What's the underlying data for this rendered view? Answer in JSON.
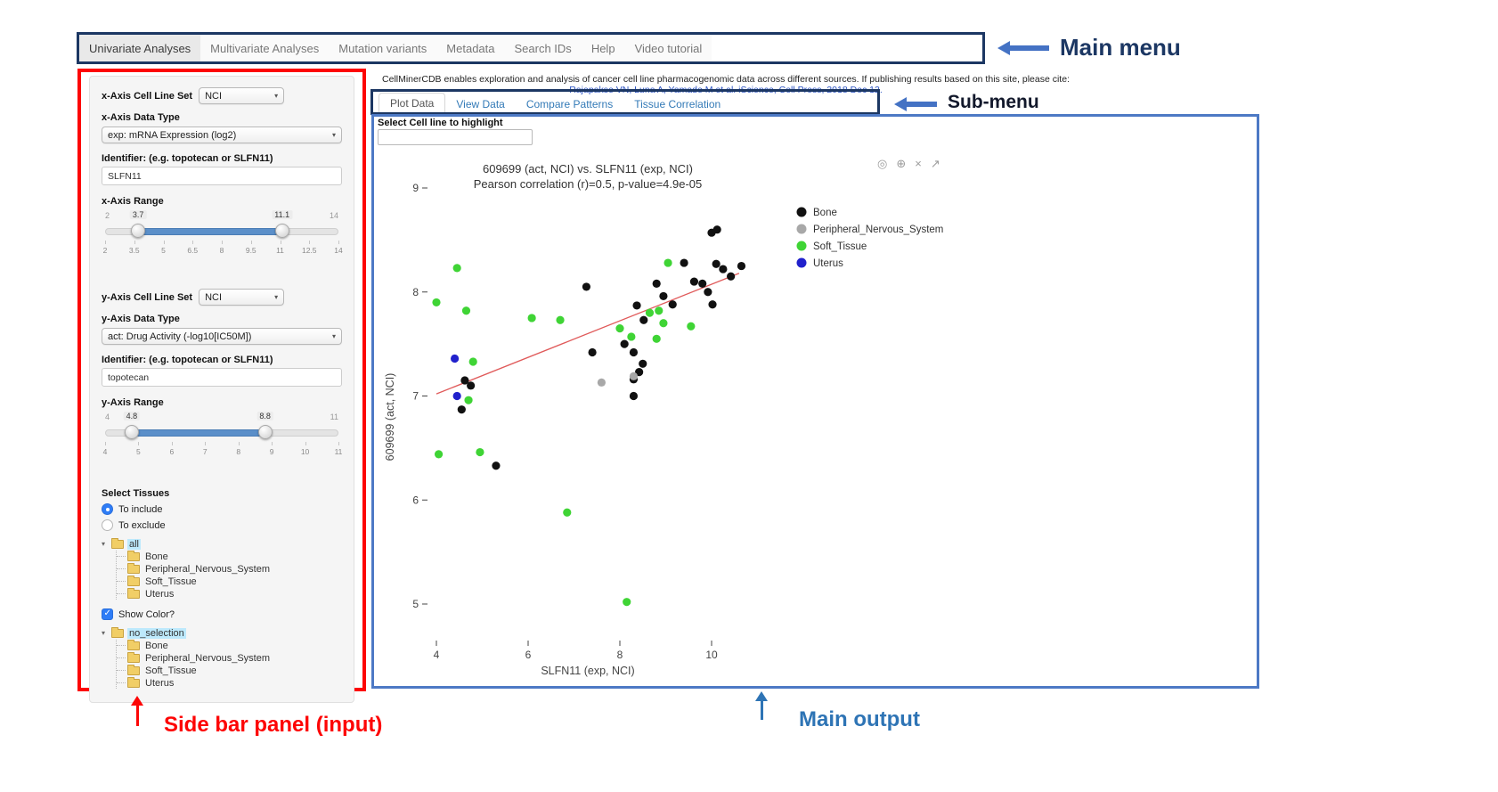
{
  "main_menu": {
    "items": [
      {
        "label": "Univariate Analyses",
        "active": true
      },
      {
        "label": "Multivariate Analyses",
        "active": false
      },
      {
        "label": "Mutation variants",
        "active": false
      },
      {
        "label": "Metadata",
        "active": false
      },
      {
        "label": "Search IDs",
        "active": false
      },
      {
        "label": "Help",
        "active": false
      },
      {
        "label": "Video tutorial",
        "active": false
      }
    ]
  },
  "header": {
    "description": "CellMinerCDB enables exploration and analysis of cancer cell line pharmacogenomic data across different sources. If publishing results based on this site, please cite:",
    "citation": "Rajapakse VN, Luna A, Yamade M et al. iScience, Cell Press, 2018 Dec 12."
  },
  "sub_menu": {
    "tabs": [
      {
        "label": "Plot Data",
        "active": true
      },
      {
        "label": "View Data",
        "active": false
      },
      {
        "label": "Compare Patterns",
        "active": false
      },
      {
        "label": "Tissue Correlation",
        "active": false
      }
    ]
  },
  "sidebar": {
    "x_axis": {
      "cell_line_set_label": "x-Axis Cell Line Set",
      "cell_line_set_value": "NCI",
      "data_type_label": "x-Axis Data Type",
      "data_type_value": "exp: mRNA Expression (log2)",
      "identifier_label": "Identifier: (e.g. topotecan or SLFN11)",
      "identifier_value": "SLFN11",
      "range_label": "x-Axis Range",
      "range": {
        "min": 2,
        "max": 14,
        "from": 3.7,
        "to": 11.1,
        "ticks": [
          "2",
          "3.5",
          "5",
          "6.5",
          "8",
          "9.5",
          "11",
          "12.5",
          "14"
        ]
      }
    },
    "y_axis": {
      "cell_line_set_label": "y-Axis Cell Line Set",
      "cell_line_set_value": "NCI",
      "data_type_label": "y-Axis Data Type",
      "data_type_value": "act: Drug Activity (-log10[IC50M])",
      "identifier_label": "Identifier: (e.g. topotecan or SLFN11)",
      "identifier_value": "topotecan",
      "range_label": "y-Axis Range",
      "range": {
        "min": 4,
        "max": 11,
        "from": 4.8,
        "to": 8.8,
        "ticks": [
          "4",
          "5",
          "6",
          "7",
          "8",
          "9",
          "10",
          "11"
        ]
      }
    },
    "tissues": {
      "label": "Select Tissues",
      "radio_include": "To include",
      "radio_exclude": "To exclude",
      "include_selected": true,
      "tree_root": "all",
      "tree_items": [
        "Bone",
        "Peripheral_Nervous_System",
        "Soft_Tissue",
        "Uterus"
      ],
      "show_color_label": "Show Color?",
      "show_color_checked": true,
      "selection_root": "no_selection",
      "selection_items": [
        "Bone",
        "Peripheral_Nervous_System",
        "Soft_Tissue",
        "Uterus"
      ]
    }
  },
  "main": {
    "highlight_label": "Select Cell line to highlight",
    "highlight_value": "",
    "modebar": [
      {
        "name": "camera-icon",
        "glyph": "◎"
      },
      {
        "name": "zoom-in-icon",
        "glyph": "⊕"
      },
      {
        "name": "close-icon",
        "glyph": "×"
      },
      {
        "name": "autoscale-icon",
        "glyph": "↗"
      }
    ]
  },
  "annotations": {
    "main_menu_label": "Main menu",
    "sub_menu_label": "Sub-menu",
    "sidebar_label": "Side bar panel (input)",
    "main_output_label": "Main output",
    "colors": {
      "navy": "#1c3763",
      "red": "#fd0505",
      "blue": "#2e74b5",
      "arrow_blue": "#4472c4"
    }
  },
  "chart_data": {
    "type": "scatter",
    "title": "609699 (act, NCI) vs. SLFN11 (exp, NCI)",
    "subtitle": "Pearson correlation (r)=0.5, p-value=4.9e-05",
    "xlabel": "SLFN11 (exp, NCI)",
    "ylabel": "609699 (act, NCI)",
    "xlim": [
      3.5,
      11.2
    ],
    "ylim": [
      4.6,
      9.3
    ],
    "x_ticks": [
      4,
      6,
      8,
      10
    ],
    "y_ticks": [
      5,
      6,
      7,
      8,
      9
    ],
    "grid": false,
    "legend_position": "right",
    "trend_line": {
      "x1": 4.0,
      "y1": 7.02,
      "x2": 10.6,
      "y2": 8.18,
      "color": "#e05a5a"
    },
    "series": [
      {
        "name": "Bone",
        "color": "#111111",
        "points": [
          [
            10.0,
            8.57
          ],
          [
            10.12,
            8.6
          ],
          [
            7.27,
            8.05
          ],
          [
            8.8,
            8.08
          ],
          [
            9.4,
            8.28
          ],
          [
            10.1,
            8.27
          ],
          [
            10.25,
            8.22
          ],
          [
            10.42,
            8.15
          ],
          [
            10.65,
            8.25
          ],
          [
            9.15,
            7.88
          ],
          [
            9.62,
            8.1
          ],
          [
            9.8,
            8.08
          ],
          [
            9.92,
            8.0
          ],
          [
            10.02,
            7.88
          ],
          [
            8.95,
            7.96
          ],
          [
            8.37,
            7.87
          ],
          [
            8.52,
            7.73
          ],
          [
            8.1,
            7.5
          ],
          [
            8.3,
            7.42
          ],
          [
            8.5,
            7.31
          ],
          [
            7.4,
            7.42
          ],
          [
            8.3,
            7.16
          ],
          [
            8.42,
            7.23
          ],
          [
            8.3,
            7.0
          ],
          [
            4.62,
            7.15
          ],
          [
            4.75,
            7.1
          ],
          [
            4.55,
            6.87
          ],
          [
            5.3,
            6.33
          ]
        ]
      },
      {
        "name": "Peripheral_Nervous_System",
        "color": "#a8a8a8",
        "points": [
          [
            7.6,
            7.13
          ],
          [
            8.3,
            7.19
          ]
        ]
      },
      {
        "name": "Soft_Tissue",
        "color": "#3fd435",
        "points": [
          [
            4.45,
            8.23
          ],
          [
            4.0,
            7.9
          ],
          [
            4.65,
            7.82
          ],
          [
            6.08,
            7.75
          ],
          [
            6.7,
            7.73
          ],
          [
            9.05,
            8.28
          ],
          [
            8.65,
            7.8
          ],
          [
            8.85,
            7.82
          ],
          [
            8.95,
            7.7
          ],
          [
            9.55,
            7.67
          ],
          [
            8.0,
            7.65
          ],
          [
            8.25,
            7.57
          ],
          [
            8.8,
            7.55
          ],
          [
            4.8,
            7.33
          ],
          [
            4.7,
            6.96
          ],
          [
            4.95,
            6.46
          ],
          [
            4.05,
            6.44
          ],
          [
            6.85,
            5.88
          ],
          [
            8.15,
            5.02
          ]
        ]
      },
      {
        "name": "Uterus",
        "color": "#2121cc",
        "points": [
          [
            4.4,
            7.36
          ],
          [
            4.45,
            7.0
          ]
        ]
      }
    ]
  }
}
